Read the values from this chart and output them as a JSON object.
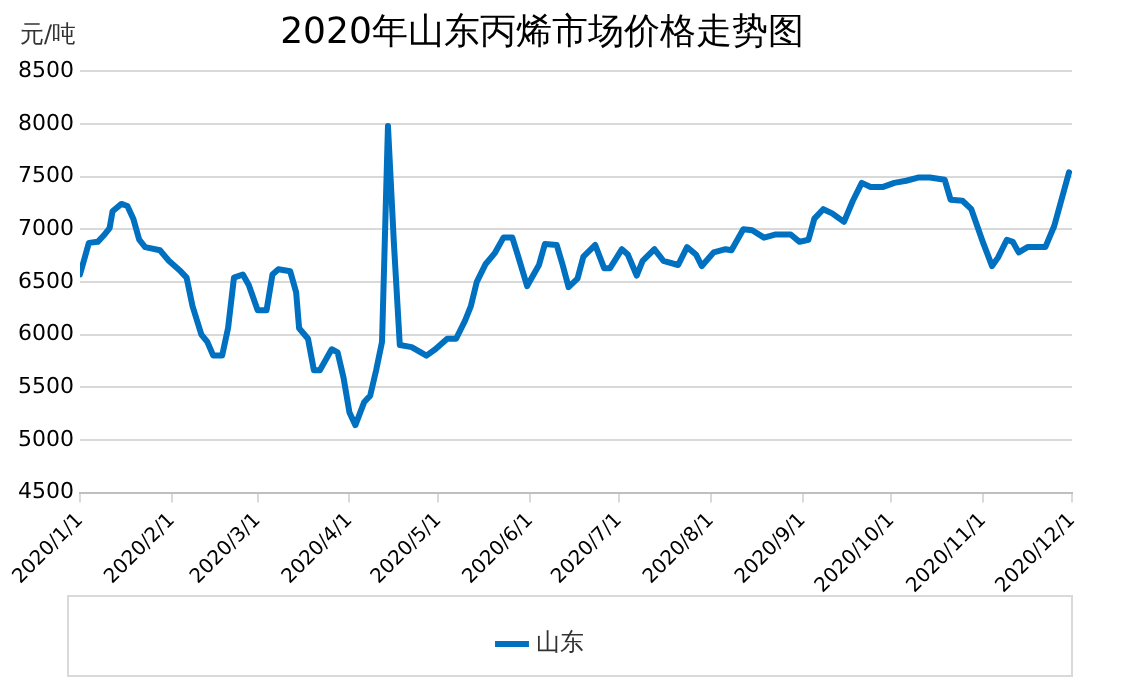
{
  "chart_data": {
    "type": "line",
    "title": "2020年山东丙烯市场价格走势图",
    "ylabel": "元/吨",
    "x": [
      "2020-01-01",
      "2020-01-04",
      "2020-01-07",
      "2020-01-09",
      "2020-01-11",
      "2020-01-12",
      "2020-01-15",
      "2020-01-17",
      "2020-01-19",
      "2020-01-21",
      "2020-01-23",
      "2020-01-28",
      "2020-01-31",
      "2020-02-04",
      "2020-02-06",
      "2020-02-08",
      "2020-02-11",
      "2020-02-13",
      "2020-02-15",
      "2020-02-18",
      "2020-02-20",
      "2020-02-22",
      "2020-02-25",
      "2020-02-27",
      "2020-03-01",
      "2020-03-04",
      "2020-03-06",
      "2020-03-08",
      "2020-03-12",
      "2020-03-14",
      "2020-03-15",
      "2020-03-18",
      "2020-03-20",
      "2020-03-22",
      "2020-03-26",
      "2020-03-28",
      "2020-03-30",
      "2020-04-01",
      "2020-04-03",
      "2020-04-06",
      "2020-04-08",
      "2020-04-10",
      "2020-04-12",
      "2020-04-14",
      "2020-04-16",
      "2020-04-18",
      "2020-04-22",
      "2020-04-27",
      "2020-04-30",
      "2020-05-04",
      "2020-05-07",
      "2020-05-10",
      "2020-05-12",
      "2020-05-14",
      "2020-05-17",
      "2020-05-20",
      "2020-05-23",
      "2020-05-26",
      "2020-05-28",
      "2020-05-31",
      "2020-06-04",
      "2020-06-06",
      "2020-06-10",
      "2020-06-12",
      "2020-06-14",
      "2020-06-17",
      "2020-06-19",
      "2020-06-23",
      "2020-06-26",
      "2020-06-28",
      "2020-07-02",
      "2020-07-04",
      "2020-07-07",
      "2020-07-09",
      "2020-07-13",
      "2020-07-16",
      "2020-07-21",
      "2020-07-24",
      "2020-07-27",
      "2020-07-29",
      "2020-08-02",
      "2020-08-06",
      "2020-08-08",
      "2020-08-12",
      "2020-08-15",
      "2020-08-19",
      "2020-08-23",
      "2020-08-28",
      "2020-08-31",
      "2020-09-03",
      "2020-09-05",
      "2020-09-08",
      "2020-09-11",
      "2020-09-15",
      "2020-09-18",
      "2020-09-21",
      "2020-09-24",
      "2020-09-28",
      "2020-10-02",
      "2020-10-06",
      "2020-10-10",
      "2020-10-14",
      "2020-10-19",
      "2020-10-21",
      "2020-10-25",
      "2020-10-28",
      "2020-11-01",
      "2020-11-04",
      "2020-11-06",
      "2020-11-09",
      "2020-11-11",
      "2020-11-13",
      "2020-11-16",
      "2020-11-22",
      "2020-11-25",
      "2020-11-30"
    ],
    "series": [
      {
        "name": "山东",
        "color": "#0070c0",
        "values": [
          6570,
          6870,
          6880,
          6940,
          7010,
          7170,
          7240,
          7220,
          7100,
          6900,
          6830,
          6800,
          6700,
          6600,
          6540,
          6270,
          6000,
          5930,
          5800,
          5800,
          6060,
          6540,
          6570,
          6470,
          6230,
          6230,
          6570,
          6620,
          6600,
          6400,
          6060,
          5960,
          5660,
          5660,
          5860,
          5830,
          5590,
          5260,
          5140,
          5360,
          5420,
          5660,
          5930,
          7980,
          6870,
          5900,
          5880,
          5800,
          5860,
          5960,
          5960,
          6130,
          6270,
          6500,
          6670,
          6770,
          6920,
          6920,
          6740,
          6460,
          6660,
          6860,
          6850,
          6660,
          6450,
          6530,
          6740,
          6850,
          6630,
          6630,
          6810,
          6760,
          6560,
          6700,
          6810,
          6700,
          6660,
          6830,
          6760,
          6650,
          6780,
          6810,
          6800,
          7000,
          6990,
          6920,
          6950,
          6950,
          6880,
          6900,
          7100,
          7190,
          7150,
          7070,
          7270,
          7440,
          7400,
          7400,
          7440,
          7460,
          7490,
          7490,
          7470,
          7280,
          7270,
          7190,
          6870,
          6650,
          6730,
          6900,
          6880,
          6780,
          6830,
          6830,
          7030,
          7540
        ]
      }
    ],
    "xlim": [
      "2020-01-01",
      "2020-12-01"
    ],
    "xticks": [
      {
        "value": "2020-01-01",
        "label": "2020/1/1"
      },
      {
        "value": "2020-02-01",
        "label": "2020/2/1"
      },
      {
        "value": "2020-03-01",
        "label": "2020/3/1"
      },
      {
        "value": "2020-04-01",
        "label": "2020/4/1"
      },
      {
        "value": "2020-05-01",
        "label": "2020/5/1"
      },
      {
        "value": "2020-06-01",
        "label": "2020/6/1"
      },
      {
        "value": "2020-07-01",
        "label": "2020/7/1"
      },
      {
        "value": "2020-08-01",
        "label": "2020/8/1"
      },
      {
        "value": "2020-09-01",
        "label": "2020/9/1"
      },
      {
        "value": "2020-10-01",
        "label": "2020/10/1"
      },
      {
        "value": "2020-11-01",
        "label": "2020/11/1"
      },
      {
        "value": "2020-12-01",
        "label": "2020/12/1"
      }
    ],
    "ylim": [
      4500,
      8500
    ],
    "yticks": [
      4500,
      5000,
      5500,
      6000,
      6500,
      7000,
      7500,
      8000,
      8500
    ],
    "grid": "y",
    "legend": "bottom",
    "marker": "none",
    "line_style": "solid"
  }
}
